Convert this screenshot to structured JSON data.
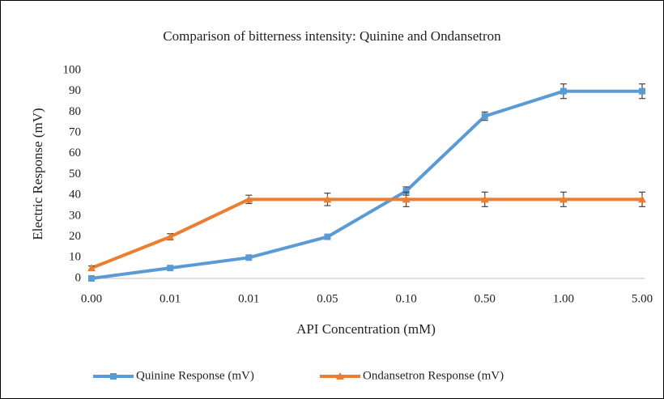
{
  "chart_data": {
    "type": "line",
    "title": "Comparison of bitterness intensity: Quinine and Ondansetron",
    "x_label": "API Concentration (mM)",
    "y_label": "Electric Response (mV)",
    "categories": [
      "0.00",
      "0.01",
      "0.01",
      "0.05",
      "0.10",
      "0.50",
      "1.00",
      "5.00"
    ],
    "series": [
      {
        "name": "Quinine Response (mV)",
        "color": "#5b9bd5",
        "marker": "square",
        "values": [
          0,
          5,
          10,
          20,
          42,
          78,
          90,
          90
        ],
        "errors": [
          0,
          0,
          0,
          0,
          2,
          2,
          3.5,
          3.5
        ]
      },
      {
        "name": "Ondansetron Response (mV)",
        "color": "#ed7d31",
        "marker": "triangle",
        "values": [
          5,
          20,
          38,
          38,
          38,
          38,
          38,
          38
        ],
        "errors": [
          1,
          1.5,
          2,
          3,
          3.5,
          3.5,
          3.5,
          3.5
        ]
      }
    ],
    "ylim": [
      0,
      100
    ],
    "yticks": [
      0,
      10,
      20,
      30,
      40,
      50,
      60,
      70,
      80,
      90,
      100
    ],
    "legend": "bottom"
  }
}
